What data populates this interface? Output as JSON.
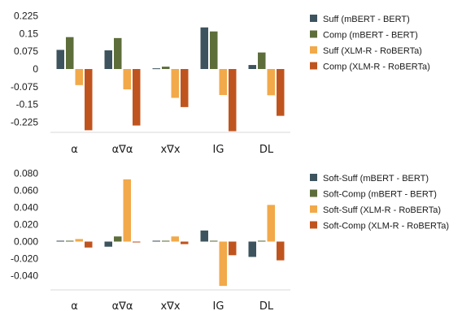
{
  "chart_data": [
    {
      "type": "bar",
      "categories": [
        "α",
        "α∇α",
        "x∇x",
        "IG",
        "DL"
      ],
      "ylim": [
        -0.25,
        0.225
      ],
      "yticks": [
        "0.225",
        "0.15",
        "0.075",
        "0",
        "-0.075",
        "-0.15",
        "-0.225"
      ],
      "ytick_values": [
        0.225,
        0.15,
        0.075,
        0,
        -0.075,
        -0.15,
        -0.225
      ],
      "grid": false,
      "legend_position": "right",
      "series": [
        {
          "name": "Suff (mBERT - BERT)",
          "color": "#3d545e",
          "values": [
            0.081,
            0.079,
            0.003,
            0.176,
            0.017
          ]
        },
        {
          "name": "Comp (mBERT - BERT)",
          "color": "#5d6e3b",
          "values": [
            0.135,
            0.131,
            0.01,
            0.159,
            0.07
          ]
        },
        {
          "name": "Suff (XLM-R - RoBERTa)",
          "color": "#f2a94a",
          "values": [
            -0.068,
            -0.086,
            -0.122,
            -0.11,
            -0.111
          ]
        },
        {
          "name": "Comp (XLM-R - RoBERTa)",
          "color": "#c0541e",
          "values": [
            -0.259,
            -0.239,
            -0.161,
            -0.263,
            -0.198
          ]
        }
      ]
    },
    {
      "type": "bar",
      "categories": [
        "α",
        "α∇α",
        "x∇x",
        "IG",
        "DL"
      ],
      "ylim": [
        -0.06,
        0.08
      ],
      "yticks": [
        "0.080",
        "0.060",
        "0.040",
        "0.020",
        "0.000",
        "-0.020",
        "-0.040"
      ],
      "ytick_values": [
        0.08,
        0.06,
        0.04,
        0.02,
        0.0,
        -0.02,
        -0.04
      ],
      "grid": false,
      "legend_position": "right",
      "series": [
        {
          "name": "Soft-Suff (mBERT - BERT)",
          "color": "#3d545e",
          "values": [
            0.001,
            -0.006,
            0.001,
            0.013,
            -0.018
          ]
        },
        {
          "name": "Soft-Comp (mBERT - BERT)",
          "color": "#5d6e3b",
          "values": [
            0.001,
            0.006,
            0.001,
            0.001,
            0.001
          ]
        },
        {
          "name": "Soft-Suff (XLM-R - RoBERTa)",
          "color": "#f2a94a",
          "values": [
            0.003,
            0.073,
            0.006,
            -0.052,
            0.043
          ]
        },
        {
          "name": "Soft-Comp (XLM-R - RoBERTa)",
          "color": "#c0541e",
          "values": [
            -0.007,
            -0.001,
            -0.003,
            -0.016,
            -0.022
          ]
        }
      ]
    }
  ]
}
